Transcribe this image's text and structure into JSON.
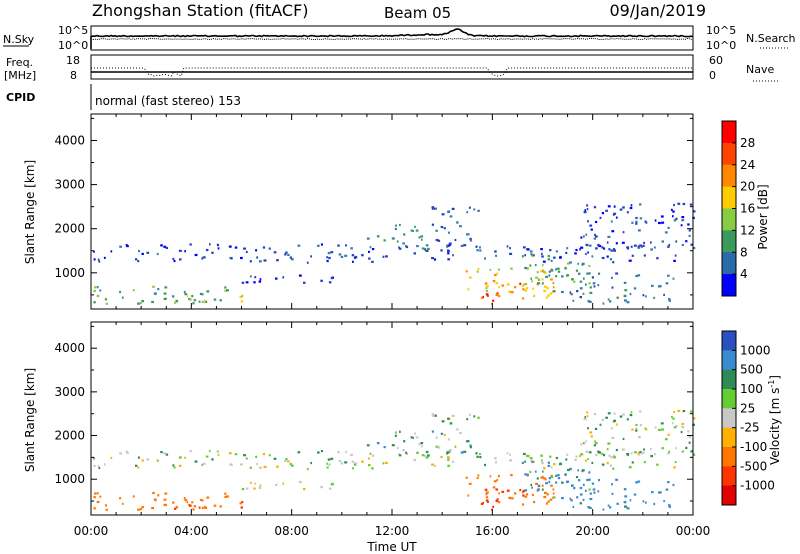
{
  "header": {
    "station": "Zhongshan Station (fitACF)",
    "beam": "Beam 05",
    "date": "09/Jan/2019"
  },
  "noise_panel": {
    "left_label": "N.Sky",
    "left_ticks": [
      "10^5",
      "10^0"
    ],
    "right_ticks": [
      "10^5",
      "10^0"
    ],
    "right_label": "N.Search"
  },
  "freq_panel": {
    "left_label_line1": "Freq.",
    "left_label_line2": "[MHz]",
    "left_ticks": [
      "18",
      "8"
    ],
    "right_ticks": [
      "60",
      "0"
    ],
    "right_label": "Nave"
  },
  "cpid": {
    "label": "CPID",
    "value": "normal (fast stereo) 153"
  },
  "power_panel": {
    "ylabel": "Slant Range [km]",
    "yticks": [
      "4000",
      "3000",
      "2000",
      "1000"
    ],
    "colorbar_label": "Power [dB]",
    "colorbar_ticks": [
      "28",
      "24",
      "20",
      "16",
      "12",
      "8",
      "4"
    ],
    "colorbar_colors": [
      "#ff0000",
      "#ff4400",
      "#ff8800",
      "#ffcc00",
      "#88cc44",
      "#3a9a5c",
      "#2a6aa8",
      "#0000ff"
    ]
  },
  "velocity_panel": {
    "ylabel": "Slant Range [km]",
    "yticks": [
      "4000",
      "3000",
      "2000",
      "1000"
    ],
    "colorbar_label": "Velocity [m s",
    "colorbar_label_sup": "-1",
    "colorbar_label_end": "]",
    "colorbar_ticks": [
      "1000",
      "500",
      "100",
      "25",
      "-25",
      "-100",
      "-500",
      "-1000"
    ],
    "colorbar_colors": [
      "#2a4fbf",
      "#3a8ad0",
      "#2e8b57",
      "#66cc33",
      "#c8c8c8",
      "#ffb000",
      "#ff7700",
      "#ff3300",
      "#e00000"
    ]
  },
  "xaxis": {
    "ticks": [
      "00:00",
      "04:00",
      "08:00",
      "12:00",
      "16:00",
      "20:00",
      "00:00"
    ],
    "label": "Time UT"
  },
  "chart_data": {
    "type": "heatmap",
    "x_range_hours": [
      0,
      24
    ],
    "y_range_km": [
      180,
      4600
    ],
    "power_db_range": [
      0,
      30
    ],
    "velocity_range": [
      -1000,
      1000
    ],
    "scatter_regions": [
      {
        "t0": 0.0,
        "t1": 24.0,
        "r0": 1300,
        "r1": 1650,
        "power": 6,
        "velocity": 25
      },
      {
        "t0": 0.0,
        "t1": 24.0,
        "r0": 1230,
        "r1": 1290,
        "power": 5,
        "velocity": 0
      },
      {
        "t0": 0.0,
        "t1": 5.5,
        "r0": 300,
        "r1": 700,
        "power": 14,
        "velocity": -300
      },
      {
        "t0": 3.0,
        "t1": 6.0,
        "r0": 300,
        "r1": 500,
        "power": 18,
        "velocity": -500
      },
      {
        "t0": 6.0,
        "t1": 10.0,
        "r0": 750,
        "r1": 950,
        "power": 6,
        "velocity": 0
      },
      {
        "t0": 11.0,
        "t1": 13.5,
        "r0": 1500,
        "r1": 2100,
        "power": 12,
        "velocity": 50
      },
      {
        "t0": 13.5,
        "t1": 15.5,
        "r0": 1500,
        "r1": 2500,
        "power": 8,
        "velocity": 40
      },
      {
        "t0": 14.8,
        "t1": 18.5,
        "r0": 400,
        "r1": 1100,
        "power": 22,
        "velocity": -300
      },
      {
        "t0": 15.5,
        "t1": 17.3,
        "r0": 300,
        "r1": 800,
        "power": 27,
        "velocity": -600
      },
      {
        "t0": 17.0,
        "t1": 20.0,
        "r0": 500,
        "r1": 1400,
        "power": 14,
        "velocity": 120
      },
      {
        "t0": 19.5,
        "t1": 24.0,
        "r0": 1500,
        "r1": 2600,
        "power": 6,
        "velocity": 25
      },
      {
        "t0": 19.0,
        "t1": 23.5,
        "r0": 300,
        "r1": 1000,
        "power": 10,
        "velocity": 150
      }
    ]
  }
}
